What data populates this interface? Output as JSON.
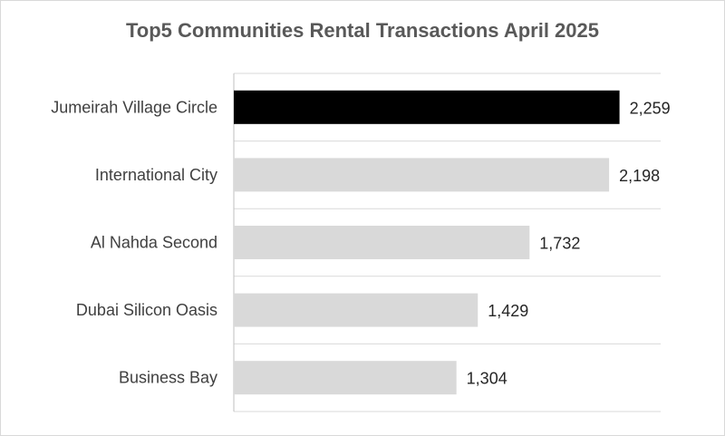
{
  "chart_data": {
    "type": "bar",
    "orientation": "horizontal",
    "title": "Top5 Communities Rental Transactions April 2025",
    "categories": [
      "Jumeirah Village Circle",
      "International City",
      "Al Nahda Second",
      "Dubai Silicon Oasis",
      "Business Bay"
    ],
    "values": [
      2259,
      2198,
      1732,
      1429,
      1304
    ],
    "value_labels": [
      "2,259",
      "2,198",
      "1,732",
      "1,429",
      "1,304"
    ],
    "xlim": [
      0,
      2500
    ],
    "grid": true,
    "legend": "none",
    "colors": {
      "highlight": "#000000",
      "bar": "#d9d9d9",
      "grid": "#d9d9d9",
      "title": "#595959"
    }
  }
}
